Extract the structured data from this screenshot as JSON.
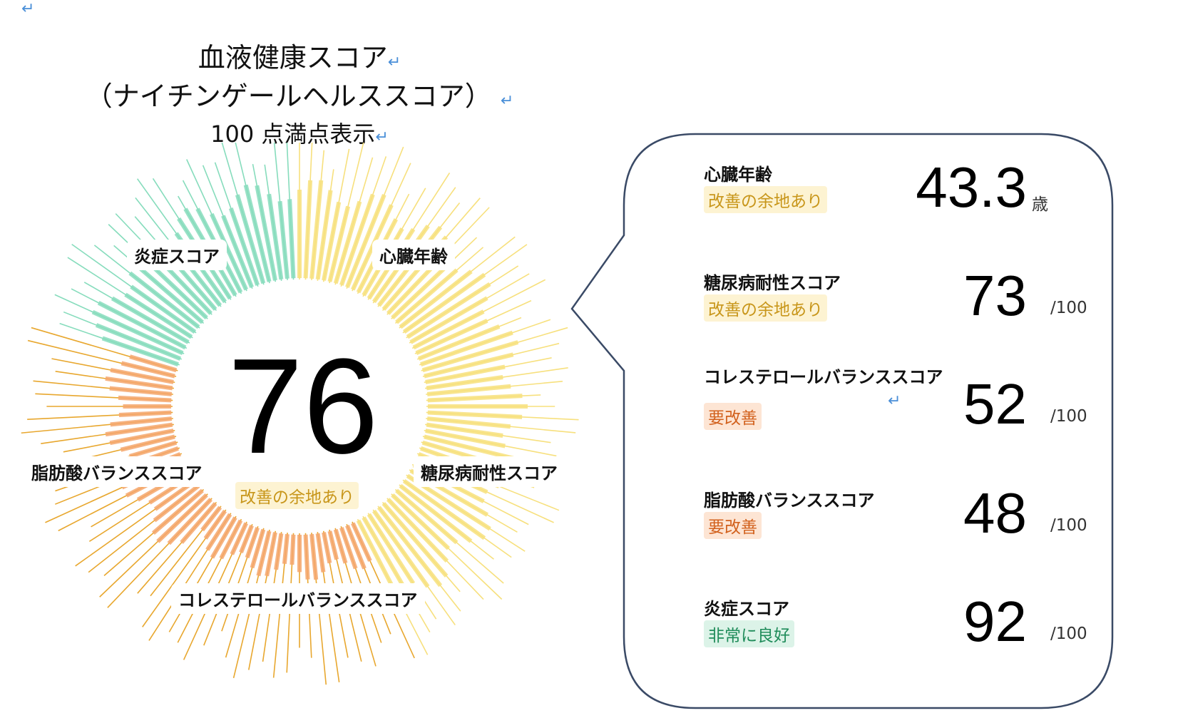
{
  "title": {
    "line1": "血液健康スコア",
    "line2": "（ナイチンゲールヘルススコア）",
    "line3": "100 点満点表示",
    "return_mark": "↵"
  },
  "overall": {
    "score": "76",
    "status": "改善の余地あり"
  },
  "status_colors": {
    "改善の余地あり": {
      "text": "#c8961a",
      "bg": "#fdf3d2"
    },
    "要改善": {
      "text": "#d2611d",
      "bg": "#fde5d4"
    },
    "非常に良好": {
      "text": "#1f8c5a",
      "bg": "#dcf3e8"
    }
  },
  "segment_colors": {
    "inflammation": "#86dcbc",
    "heart": "#f7e07d",
    "diabetes": "#f7e07d",
    "cholesterol": "#f5a66c",
    "fatty": "#f5a66c",
    "outer_line": "#e8a72e"
  },
  "chart_data": {
    "type": "radial-bar",
    "segments": [
      {
        "key": "heart",
        "label": "心臓年齢"
      },
      {
        "key": "diabetes",
        "label": "糖尿病耐性スコア"
      },
      {
        "key": "cholesterol",
        "label": "コレステロールバランススコア"
      },
      {
        "key": "fatty",
        "label": "脂肪酸バランススコア"
      },
      {
        "key": "inflammation",
        "label": "炎症スコア"
      }
    ]
  },
  "scores": [
    {
      "name": "心臓年齢",
      "status": "改善の余地あり",
      "value": "43.3",
      "unit": "歳"
    },
    {
      "name": "糖尿病耐性スコア",
      "status": "改善の余地あり",
      "value": "73",
      "unit": "/100"
    },
    {
      "name": "コレステロールバランススコア",
      "status": "要改善",
      "value": "52",
      "unit": "/100"
    },
    {
      "name": "脂肪酸バランススコア",
      "status": "要改善",
      "value": "48",
      "unit": "/100"
    },
    {
      "name": "炎症スコア",
      "status": "非常に良好",
      "value": "92",
      "unit": "/100"
    }
  ]
}
